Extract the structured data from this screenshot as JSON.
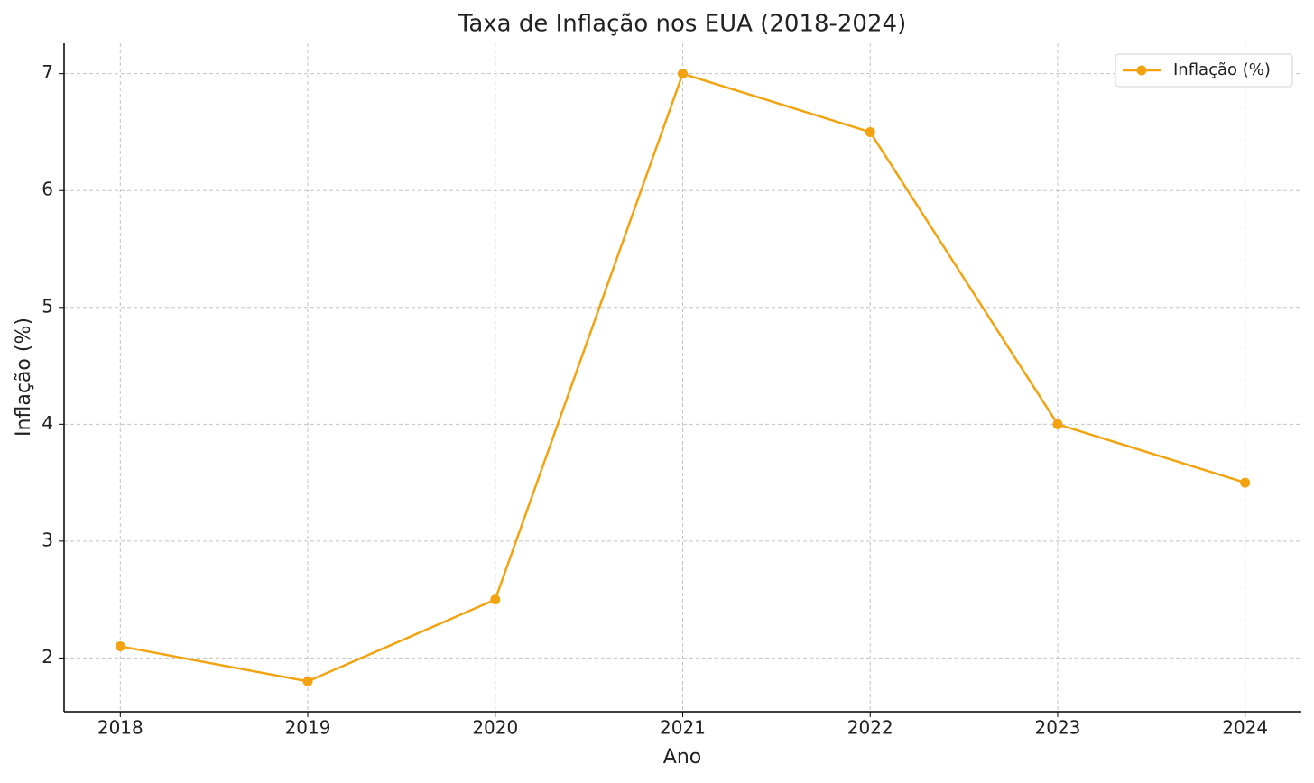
{
  "chart_data": {
    "type": "line",
    "title": "Taxa de Inflação nos EUA (2018-2024)",
    "x_label": "Ano",
    "y_label": "Inflação (%)",
    "x": [
      2018,
      2019,
      2020,
      2021,
      2022,
      2023,
      2024
    ],
    "series": [
      {
        "name": "Inflação (%)",
        "color": "#f2a30f",
        "values": [
          2.1,
          1.8,
          2.5,
          7.0,
          6.5,
          4.0,
          3.5
        ]
      }
    ],
    "xlim": [
      2017.7,
      2024.3
    ],
    "xticks": [
      2018,
      2019,
      2020,
      2021,
      2022,
      2023,
      2024
    ],
    "ylim": [
      1.54,
      7.26
    ],
    "yticks": [
      2,
      3,
      4,
      5,
      6,
      7
    ],
    "grid": true,
    "legend": "upper right"
  }
}
